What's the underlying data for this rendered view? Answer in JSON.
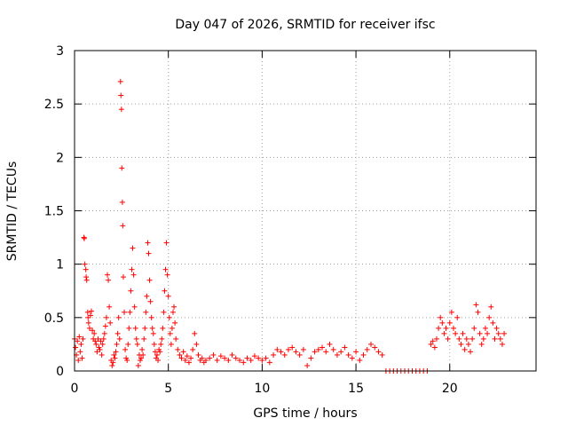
{
  "chart_data": {
    "type": "scatter",
    "title": "Day 047 of 2026, SRMTID for receiver ifsc",
    "xlabel": "GPS time / hours",
    "ylabel": "SRMTID / TECUs",
    "xlim": [
      0,
      24.6
    ],
    "ylim": [
      0,
      3
    ],
    "xticks": [
      0,
      5,
      10,
      15,
      20
    ],
    "xtick_labels": [
      "0",
      "5",
      "10",
      "15",
      "20"
    ],
    "yticks": [
      0,
      0.5,
      1,
      1.5,
      2,
      2.5,
      3
    ],
    "ytick_labels": [
      "0",
      "0.5",
      "1",
      "1.5",
      "2",
      "2.5",
      "3"
    ],
    "grid": true,
    "marker": "+",
    "marker_color": "#ff0000",
    "series": [
      {
        "name": "SRMTID",
        "points": [
          [
            0.0,
            0.3
          ],
          [
            0.05,
            0.22
          ],
          [
            0.1,
            0.15
          ],
          [
            0.15,
            0.28
          ],
          [
            0.2,
            0.1
          ],
          [
            0.25,
            0.32
          ],
          [
            0.3,
            0.18
          ],
          [
            0.35,
            0.25
          ],
          [
            0.4,
            0.12
          ],
          [
            0.45,
            0.3
          ],
          [
            0.5,
            1.25
          ],
          [
            0.52,
            1.24
          ],
          [
            0.55,
            1.0
          ],
          [
            0.6,
            0.95
          ],
          [
            0.62,
            0.88
          ],
          [
            0.65,
            0.85
          ],
          [
            0.7,
            0.55
          ],
          [
            0.72,
            0.5
          ],
          [
            0.75,
            0.45
          ],
          [
            0.8,
            0.4
          ],
          [
            0.85,
            0.52
          ],
          [
            0.9,
            0.56
          ],
          [
            0.95,
            0.38
          ],
          [
            1.0,
            0.3
          ],
          [
            1.05,
            0.35
          ],
          [
            1.1,
            0.28
          ],
          [
            1.15,
            0.25
          ],
          [
            1.2,
            0.18
          ],
          [
            1.25,
            0.3
          ],
          [
            1.3,
            0.22
          ],
          [
            1.35,
            0.2
          ],
          [
            1.4,
            0.28
          ],
          [
            1.45,
            0.15
          ],
          [
            1.5,
            0.25
          ],
          [
            1.55,
            0.3
          ],
          [
            1.6,
            0.35
          ],
          [
            1.65,
            0.42
          ],
          [
            1.7,
            0.5
          ],
          [
            1.75,
            0.9
          ],
          [
            1.8,
            0.85
          ],
          [
            1.85,
            0.6
          ],
          [
            1.9,
            0.45
          ],
          [
            1.95,
            0.1
          ],
          [
            2.0,
            0.05
          ],
          [
            2.05,
            0.08
          ],
          [
            2.1,
            0.15
          ],
          [
            2.15,
            0.12
          ],
          [
            2.2,
            0.18
          ],
          [
            2.25,
            0.25
          ],
          [
            2.3,
            0.35
          ],
          [
            2.35,
            0.5
          ],
          [
            2.4,
            0.3
          ],
          [
            2.45,
            2.71
          ],
          [
            2.47,
            2.58
          ],
          [
            2.5,
            2.45
          ],
          [
            2.52,
            1.9
          ],
          [
            2.55,
            1.58
          ],
          [
            2.57,
            1.36
          ],
          [
            2.6,
            0.88
          ],
          [
            2.65,
            0.55
          ],
          [
            2.7,
            0.2
          ],
          [
            2.75,
            0.12
          ],
          [
            2.8,
            0.1
          ],
          [
            2.85,
            0.25
          ],
          [
            2.9,
            0.4
          ],
          [
            2.95,
            0.55
          ],
          [
            3.0,
            0.75
          ],
          [
            3.05,
            0.95
          ],
          [
            3.1,
            1.15
          ],
          [
            3.15,
            0.9
          ],
          [
            3.2,
            0.6
          ],
          [
            3.25,
            0.4
          ],
          [
            3.3,
            0.3
          ],
          [
            3.35,
            0.25
          ],
          [
            3.4,
            0.05
          ],
          [
            3.45,
            0.15
          ],
          [
            3.5,
            0.1
          ],
          [
            3.55,
            0.12
          ],
          [
            3.6,
            0.2
          ],
          [
            3.65,
            0.15
          ],
          [
            3.7,
            0.3
          ],
          [
            3.75,
            0.4
          ],
          [
            3.8,
            0.55
          ],
          [
            3.85,
            0.7
          ],
          [
            3.9,
            1.2
          ],
          [
            3.95,
            1.1
          ],
          [
            4.0,
            0.85
          ],
          [
            4.05,
            0.65
          ],
          [
            4.1,
            0.5
          ],
          [
            4.15,
            0.4
          ],
          [
            4.2,
            0.35
          ],
          [
            4.25,
            0.25
          ],
          [
            4.3,
            0.18
          ],
          [
            4.35,
            0.12
          ],
          [
            4.4,
            0.15
          ],
          [
            4.45,
            0.1
          ],
          [
            4.5,
            0.2
          ],
          [
            4.55,
            0.18
          ],
          [
            4.6,
            0.25
          ],
          [
            4.65,
            0.3
          ],
          [
            4.7,
            0.4
          ],
          [
            4.75,
            0.55
          ],
          [
            4.8,
            0.75
          ],
          [
            4.85,
            0.95
          ],
          [
            4.9,
            1.2
          ],
          [
            4.95,
            0.9
          ],
          [
            5.0,
            0.7
          ],
          [
            5.05,
            0.5
          ],
          [
            5.1,
            0.35
          ],
          [
            5.15,
            0.25
          ],
          [
            5.2,
            0.4
          ],
          [
            5.25,
            0.55
          ],
          [
            5.3,
            0.6
          ],
          [
            5.35,
            0.45
          ],
          [
            5.4,
            0.3
          ],
          [
            5.5,
            0.2
          ],
          [
            5.6,
            0.15
          ],
          [
            5.7,
            0.12
          ],
          [
            5.8,
            0.18
          ],
          [
            5.9,
            0.1
          ],
          [
            6.0,
            0.14
          ],
          [
            6.1,
            0.08
          ],
          [
            6.2,
            0.12
          ],
          [
            6.3,
            0.2
          ],
          [
            6.4,
            0.35
          ],
          [
            6.5,
            0.25
          ],
          [
            6.6,
            0.15
          ],
          [
            6.7,
            0.1
          ],
          [
            6.8,
            0.12
          ],
          [
            6.9,
            0.08
          ],
          [
            7.0,
            0.1
          ],
          [
            7.2,
            0.12
          ],
          [
            7.4,
            0.15
          ],
          [
            7.6,
            0.1
          ],
          [
            7.8,
            0.14
          ],
          [
            8.0,
            0.12
          ],
          [
            8.2,
            0.1
          ],
          [
            8.4,
            0.15
          ],
          [
            8.6,
            0.12
          ],
          [
            8.8,
            0.1
          ],
          [
            9.0,
            0.08
          ],
          [
            9.2,
            0.12
          ],
          [
            9.4,
            0.1
          ],
          [
            9.6,
            0.14
          ],
          [
            9.8,
            0.12
          ],
          [
            10.0,
            0.1
          ],
          [
            10.2,
            0.12
          ],
          [
            10.4,
            0.08
          ],
          [
            10.6,
            0.15
          ],
          [
            10.8,
            0.2
          ],
          [
            11.0,
            0.18
          ],
          [
            11.2,
            0.15
          ],
          [
            11.4,
            0.2
          ],
          [
            11.6,
            0.22
          ],
          [
            11.8,
            0.18
          ],
          [
            12.0,
            0.15
          ],
          [
            12.2,
            0.2
          ],
          [
            12.4,
            0.05
          ],
          [
            12.6,
            0.12
          ],
          [
            12.8,
            0.18
          ],
          [
            13.0,
            0.2
          ],
          [
            13.2,
            0.22
          ],
          [
            13.4,
            0.18
          ],
          [
            13.6,
            0.25
          ],
          [
            13.8,
            0.2
          ],
          [
            14.0,
            0.15
          ],
          [
            14.2,
            0.18
          ],
          [
            14.4,
            0.22
          ],
          [
            14.6,
            0.15
          ],
          [
            14.8,
            0.12
          ],
          [
            15.0,
            0.18
          ],
          [
            15.2,
            0.1
          ],
          [
            15.4,
            0.15
          ],
          [
            15.6,
            0.2
          ],
          [
            15.8,
            0.25
          ],
          [
            16.0,
            0.22
          ],
          [
            16.2,
            0.18
          ],
          [
            16.4,
            0.15
          ],
          [
            16.6,
            0.0
          ],
          [
            16.8,
            0.0
          ],
          [
            17.0,
            0.0
          ],
          [
            17.2,
            0.0
          ],
          [
            17.4,
            0.0
          ],
          [
            17.6,
            0.0
          ],
          [
            17.8,
            0.0
          ],
          [
            18.0,
            0.0
          ],
          [
            18.2,
            0.0
          ],
          [
            18.4,
            0.0
          ],
          [
            18.6,
            0.0
          ],
          [
            18.8,
            0.0
          ],
          [
            19.0,
            0.25
          ],
          [
            19.1,
            0.28
          ],
          [
            19.2,
            0.22
          ],
          [
            19.3,
            0.3
          ],
          [
            19.4,
            0.4
          ],
          [
            19.5,
            0.5
          ],
          [
            19.6,
            0.45
          ],
          [
            19.7,
            0.35
          ],
          [
            19.8,
            0.4
          ],
          [
            19.9,
            0.3
          ],
          [
            20.0,
            0.45
          ],
          [
            20.1,
            0.55
          ],
          [
            20.2,
            0.4
          ],
          [
            20.3,
            0.35
          ],
          [
            20.4,
            0.5
          ],
          [
            20.5,
            0.3
          ],
          [
            20.6,
            0.25
          ],
          [
            20.7,
            0.35
          ],
          [
            20.8,
            0.2
          ],
          [
            20.9,
            0.3
          ],
          [
            21.0,
            0.25
          ],
          [
            21.1,
            0.18
          ],
          [
            21.2,
            0.3
          ],
          [
            21.3,
            0.4
          ],
          [
            21.4,
            0.62
          ],
          [
            21.5,
            0.55
          ],
          [
            21.6,
            0.35
          ],
          [
            21.7,
            0.25
          ],
          [
            21.8,
            0.3
          ],
          [
            21.9,
            0.4
          ],
          [
            22.0,
            0.35
          ],
          [
            22.1,
            0.5
          ],
          [
            22.2,
            0.6
          ],
          [
            22.3,
            0.45
          ],
          [
            22.4,
            0.3
          ],
          [
            22.5,
            0.4
          ],
          [
            22.6,
            0.35
          ],
          [
            22.7,
            0.3
          ],
          [
            22.8,
            0.25
          ],
          [
            22.9,
            0.35
          ]
        ]
      }
    ]
  }
}
